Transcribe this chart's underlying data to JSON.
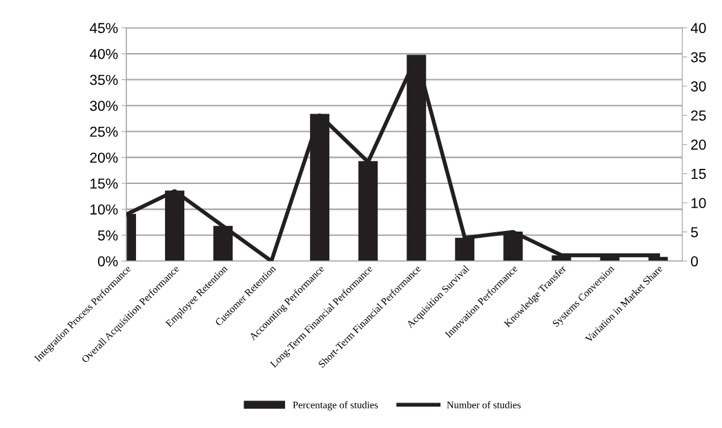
{
  "chart_data": {
    "type": "bar",
    "categories": [
      "Integration Process Performance",
      "Overall Acquisition Performance",
      "Employee Retention",
      "Customer Retention",
      "Accounting Performance",
      "Long-Term Financial Performance",
      "Short-Term Financial Performance",
      "Acquisition Survival",
      "Innovation Performance",
      "Knowledge Transfer",
      "Systems Conversion",
      "Variation in Market Share"
    ],
    "series": [
      {
        "name": "Percentage of studies",
        "color": "#231f20",
        "values": [
          9.1,
          13.6,
          6.8,
          0,
          28.4,
          19.3,
          39.8,
          4.5,
          5.7,
          1.1,
          1.1,
          0.8
        ]
      },
      {
        "name": "Number of studies",
        "type": "line",
        "axis": "y2",
        "color": "#231f20",
        "values": [
          8,
          12,
          6,
          0,
          25,
          17,
          35,
          4,
          5,
          1,
          1,
          1
        ]
      }
    ],
    "ylim": [
      0,
      45
    ],
    "yticks": [
      {
        "value": 0,
        "label": "0%"
      },
      {
        "value": 5,
        "label": "5%"
      },
      {
        "value": 10,
        "label": "10%"
      },
      {
        "value": 15,
        "label": "15%"
      },
      {
        "value": 20,
        "label": "20%"
      },
      {
        "value": 25,
        "label": "25%"
      },
      {
        "value": 30,
        "label": "30%"
      },
      {
        "value": 35,
        "label": "35%"
      },
      {
        "value": 40,
        "label": "40%"
      },
      {
        "value": 45,
        "label": "45%"
      }
    ],
    "y2lim": [
      0,
      40
    ],
    "y2ticks": [
      0,
      5,
      10,
      15,
      20,
      25,
      30,
      35,
      40
    ],
    "grid": "y",
    "legend": "bottom",
    "marker": "none",
    "line_style": "solid"
  }
}
